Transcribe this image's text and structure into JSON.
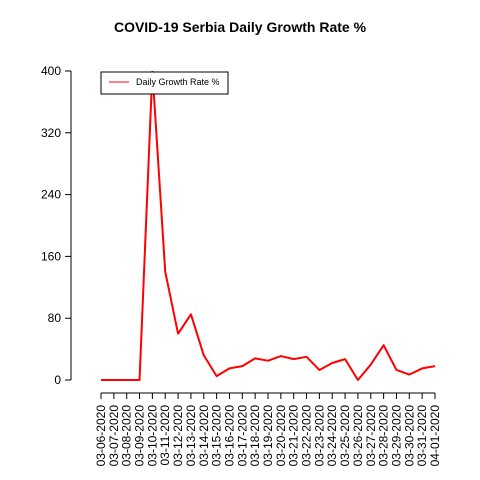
{
  "chart_data": {
    "type": "line",
    "title": "COVID-19 Serbia Daily Growth Rate %",
    "xlabel": "",
    "ylabel": "",
    "ylim": [
      0,
      400
    ],
    "yticks": [
      0,
      80,
      160,
      240,
      320,
      400
    ],
    "legend_position": "top-left",
    "grid": false,
    "categories": [
      "03-06-2020",
      "03-07-2020",
      "03-08-2020",
      "03-09-2020",
      "03-10-2020",
      "03-11-2020",
      "03-12-2020",
      "03-13-2020",
      "03-14-2020",
      "03-15-2020",
      "03-16-2020",
      "03-17-2020",
      "03-18-2020",
      "03-19-2020",
      "03-20-2020",
      "03-21-2020",
      "03-22-2020",
      "03-23-2020",
      "03-24-2020",
      "03-25-2020",
      "03-26-2020",
      "03-27-2020",
      "03-28-2020",
      "03-29-2020",
      "03-30-2020",
      "03-31-2020",
      "04-01-2020"
    ],
    "series": [
      {
        "name": "Daily Growth Rate %",
        "color": "#ff0000",
        "values": [
          0,
          0,
          0,
          0,
          400,
          140,
          60,
          85,
          32,
          5,
          15,
          18,
          28,
          25,
          31,
          27,
          30,
          13,
          22,
          27,
          0,
          20,
          45,
          13,
          7,
          15,
          18
        ]
      }
    ]
  }
}
